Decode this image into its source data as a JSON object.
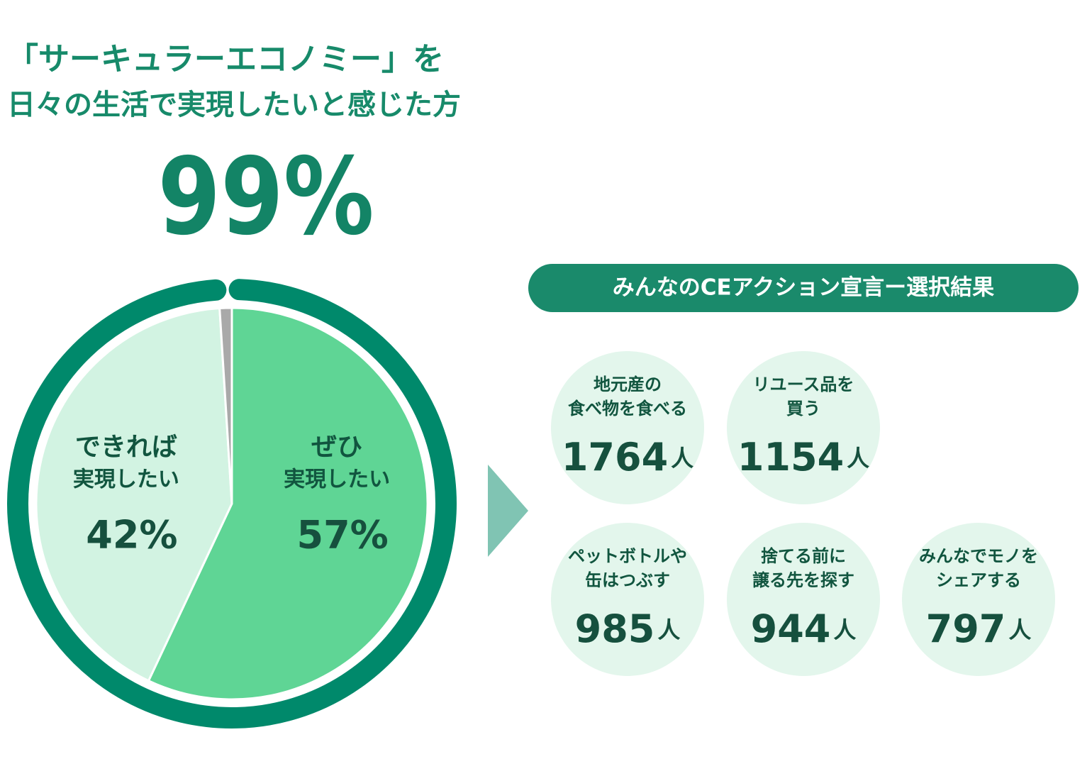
{
  "chart_data": {
    "type": "pie",
    "title": [
      "「サーキュラーエコノミー」を",
      "日々の生活で実現したいと感じた方"
    ],
    "headline": "99%",
    "categories": [
      [
        "ぜひ",
        "実現したい"
      ],
      [
        "できれば",
        "実現したい"
      ],
      null
    ],
    "values": [
      57,
      42,
      1
    ],
    "value_labels": [
      "57%",
      "42%",
      null
    ],
    "colors": [
      "#5fd595",
      "#d2f3e2",
      "#a9a9a9"
    ],
    "ring_color": "#00896b"
  },
  "actions": {
    "title": "みんなのCEアクション宣言ー選択結果",
    "items": [
      {
        "label": [
          "地元産の",
          "食べ物を食べる"
        ],
        "count": 1764,
        "unit": "人"
      },
      {
        "label": [
          "リユース品を",
          "買う"
        ],
        "count": 1154,
        "unit": "人"
      },
      {
        "label": [
          "ペットボトルや",
          "缶はつぶす"
        ],
        "count": 985,
        "unit": "人"
      },
      {
        "label": [
          "捨てる前に",
          "譲る先を探す"
        ],
        "count": 944,
        "unit": "人"
      },
      {
        "label": [
          "みんなでモノを",
          "シェアする"
        ],
        "count": 797,
        "unit": "人"
      }
    ]
  }
}
